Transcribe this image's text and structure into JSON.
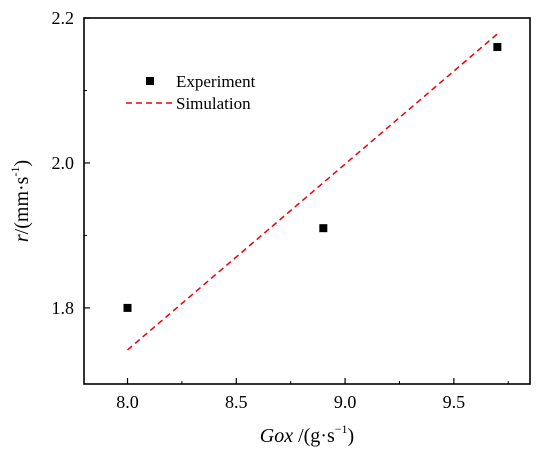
{
  "chart_data": {
    "type": "scatter",
    "xlabel": {
      "main": "Gox",
      "unit": " /(g·s",
      "sup": "−1",
      "close": ")"
    },
    "ylabel": {
      "main": "r",
      "unit": "/(mm·s",
      "sup": "-1",
      "close": ")"
    },
    "xlim": [
      7.8,
      9.85
    ],
    "ylim": [
      1.695,
      2.2
    ],
    "xticks": [
      8.0,
      8.5,
      9.0,
      9.5
    ],
    "xtick_labels": [
      "8.0",
      "8.5",
      "9.0",
      "9.5"
    ],
    "yticks": [
      1.8,
      2.0,
      2.2
    ],
    "ytick_labels": [
      "1.8",
      "2.0",
      "2.2"
    ],
    "grid": false,
    "legend_position": "top-left",
    "series": [
      {
        "name": "Experiment",
        "kind": "scatter",
        "marker": "square",
        "color": "#000000",
        "x": [
          8.0,
          8.9,
          9.7
        ],
        "y": [
          1.8,
          1.91,
          2.16
        ]
      },
      {
        "name": "Simulation",
        "kind": "line",
        "style": "dashed",
        "color": "#e8000b",
        "x": [
          8.0,
          9.7
        ],
        "y": [
          1.742,
          2.178
        ]
      }
    ]
  }
}
